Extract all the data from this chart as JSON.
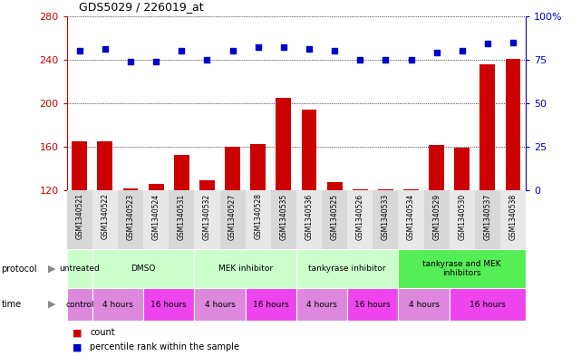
{
  "title": "GDS5029 / 226019_at",
  "samples": [
    "GSM1340521",
    "GSM1340522",
    "GSM1340523",
    "GSM1340524",
    "GSM1340531",
    "GSM1340532",
    "GSM1340527",
    "GSM1340528",
    "GSM1340535",
    "GSM1340536",
    "GSM1340525",
    "GSM1340526",
    "GSM1340533",
    "GSM1340534",
    "GSM1340529",
    "GSM1340530",
    "GSM1340537",
    "GSM1340538"
  ],
  "counts": [
    165,
    165,
    122,
    126,
    153,
    129,
    160,
    163,
    205,
    194,
    128,
    121,
    121,
    121,
    162,
    159,
    236,
    241
  ],
  "percentiles": [
    80,
    81,
    74,
    74,
    80,
    75,
    80,
    82,
    82,
    81,
    80,
    75,
    75,
    75,
    79,
    80,
    84,
    85
  ],
  "ylim_left": [
    120,
    280
  ],
  "ylim_right": [
    0,
    100
  ],
  "yticks_left": [
    120,
    160,
    200,
    240,
    280
  ],
  "yticks_right": [
    0,
    25,
    50,
    75,
    100
  ],
  "bar_color": "#cc0000",
  "dot_color": "#0000cc",
  "protocol_row": [
    {
      "label": "untreated",
      "start": 0,
      "end": 1,
      "color": "#ccffcc"
    },
    {
      "label": "DMSO",
      "start": 1,
      "end": 5,
      "color": "#ccffcc"
    },
    {
      "label": "MEK inhibitor",
      "start": 5,
      "end": 9,
      "color": "#ccffcc"
    },
    {
      "label": "tankyrase inhibitor",
      "start": 9,
      "end": 13,
      "color": "#ccffcc"
    },
    {
      "label": "tankyrase and MEK\ninhibitors",
      "start": 13,
      "end": 18,
      "color": "#55ee55"
    }
  ],
  "time_row": [
    {
      "label": "control",
      "start": 0,
      "end": 1,
      "color": "#dd88dd"
    },
    {
      "label": "4 hours",
      "start": 1,
      "end": 3,
      "color": "#dd88dd"
    },
    {
      "label": "16 hours",
      "start": 3,
      "end": 5,
      "color": "#ee44ee"
    },
    {
      "label": "4 hours",
      "start": 5,
      "end": 7,
      "color": "#dd88dd"
    },
    {
      "label": "16 hours",
      "start": 7,
      "end": 9,
      "color": "#ee44ee"
    },
    {
      "label": "4 hours",
      "start": 9,
      "end": 11,
      "color": "#dd88dd"
    },
    {
      "label": "16 hours",
      "start": 11,
      "end": 13,
      "color": "#ee44ee"
    },
    {
      "label": "4 hours",
      "start": 13,
      "end": 15,
      "color": "#dd88dd"
    },
    {
      "label": "16 hours",
      "start": 15,
      "end": 18,
      "color": "#ee44ee"
    }
  ]
}
